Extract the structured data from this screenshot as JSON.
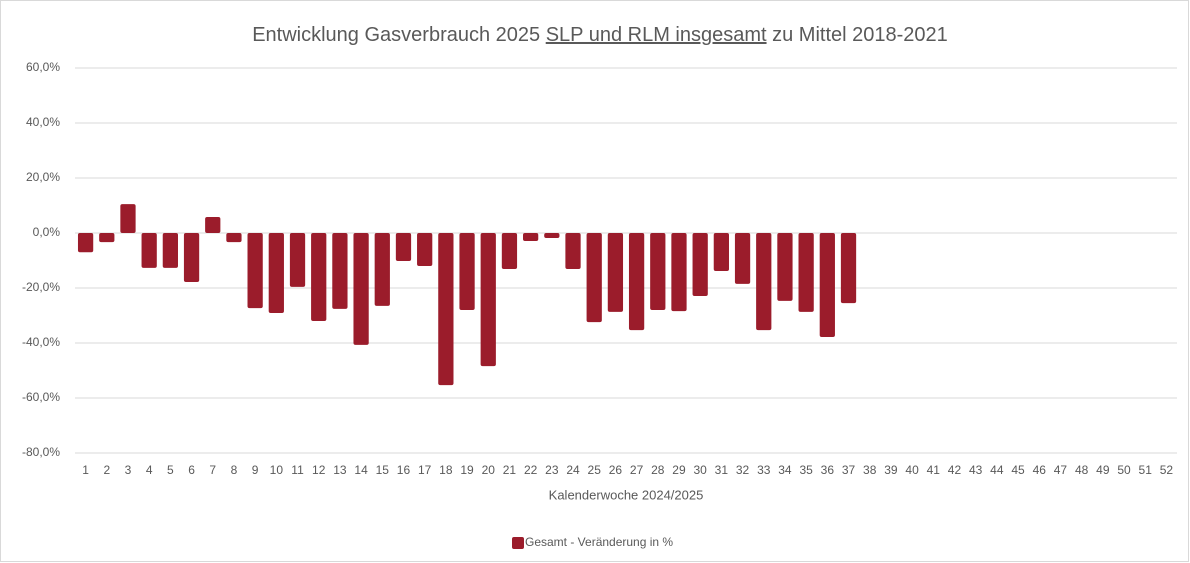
{
  "chart_data": {
    "type": "bar",
    "title_parts": [
      {
        "text": "Entwicklung Gasverbrauch 2025 ",
        "underline": false
      },
      {
        "text": "SLP und RLM insgesamt",
        "underline": true
      },
      {
        "text": " zu Mittel 2018-2021",
        "underline": false
      }
    ],
    "x_label": "Kalenderwoche 2024/2025",
    "categories": [
      "1",
      "2",
      "3",
      "4",
      "5",
      "6",
      "7",
      "8",
      "9",
      "10",
      "11",
      "12",
      "13",
      "14",
      "15",
      "16",
      "17",
      "18",
      "19",
      "20",
      "21",
      "22",
      "23",
      "24",
      "25",
      "26",
      "27",
      "28",
      "29",
      "30",
      "31",
      "32",
      "33",
      "34",
      "35",
      "36",
      "37",
      "38",
      "39",
      "40",
      "41",
      "42",
      "43",
      "44",
      "45",
      "46",
      "47",
      "48",
      "49",
      "50",
      "51",
      "52"
    ],
    "series": [
      {
        "name": "Gesamt - Veränderung in %",
        "color": "#9b1c2b",
        "values": [
          -7,
          -3.3,
          10.5,
          -12.7,
          -12.7,
          -17.8,
          5.8,
          -3.3,
          -27.3,
          -29.1,
          -19.6,
          -32,
          -27.6,
          -40.7,
          -26.5,
          -10.2,
          -12,
          -55.3,
          -28,
          -48.4,
          -13.1,
          -2.9,
          -1.8,
          -13.1,
          -32.4,
          -28.7,
          -35.3,
          -28,
          -28.4,
          -22.9,
          -13.8,
          -18.5,
          -35.3,
          -24.7,
          -28.7,
          -37.8,
          -25.5,
          null,
          null,
          null,
          null,
          null,
          null,
          null,
          null,
          null,
          null,
          null,
          null,
          null,
          null,
          null
        ]
      }
    ],
    "ylim": [
      -80,
      60
    ],
    "yticks": [
      {
        "value": -80,
        "label": "-80,0%"
      },
      {
        "value": -60,
        "label": "-60,0%"
      },
      {
        "value": -40,
        "label": "-40,0%"
      },
      {
        "value": -20,
        "label": "-20,0%"
      },
      {
        "value": 0,
        "label": "0,0%"
      },
      {
        "value": 20,
        "label": "20,0%"
      },
      {
        "value": 40,
        "label": "40,0%"
      },
      {
        "value": 60,
        "label": "60,0%"
      }
    ],
    "grid": true,
    "legend": "bottom"
  }
}
